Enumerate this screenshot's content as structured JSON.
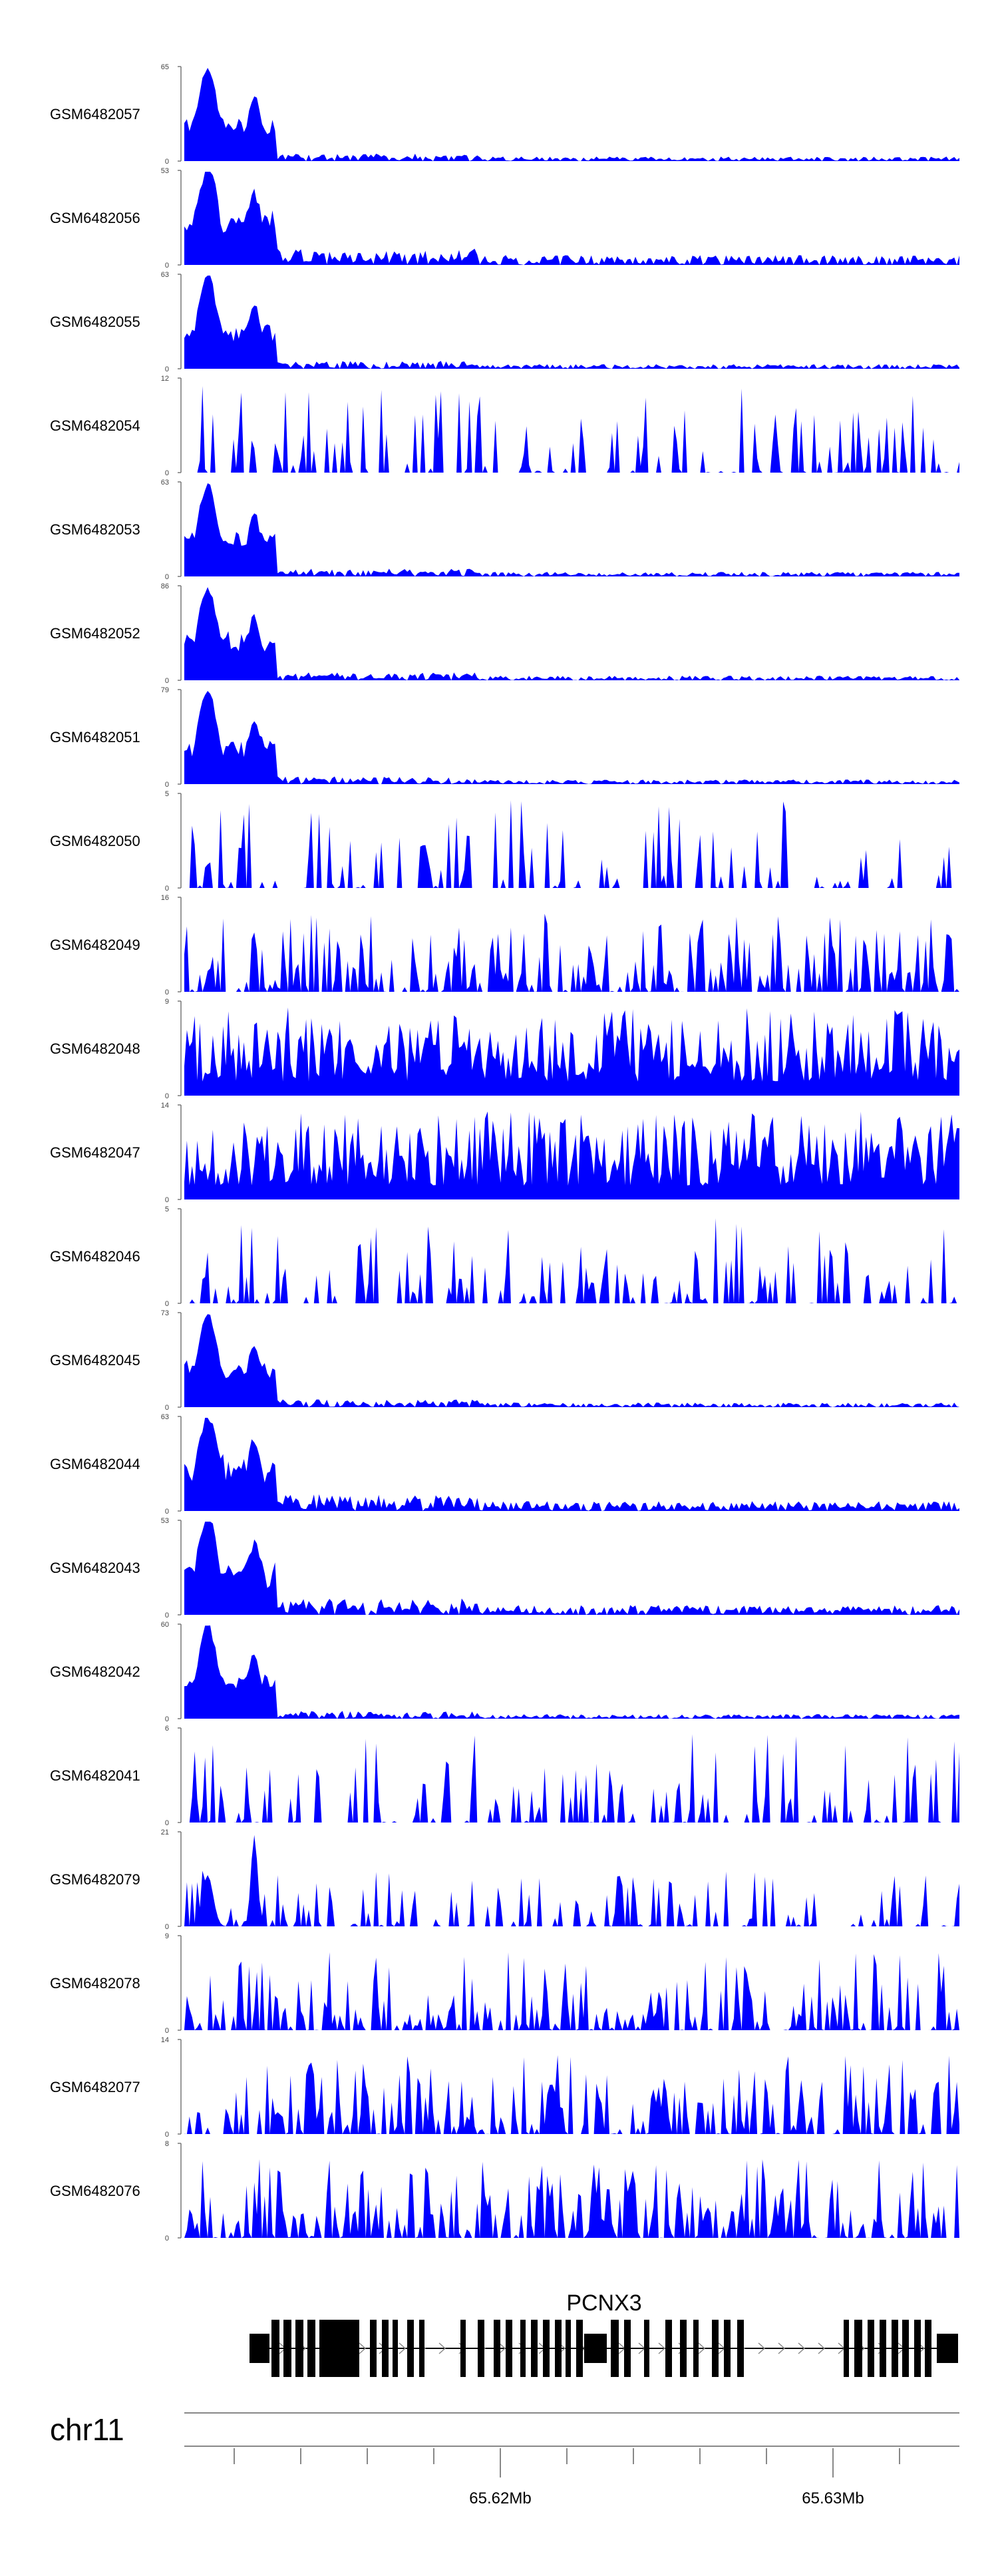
{
  "chart_data": {
    "type": "area",
    "fill_color": "#0000ff",
    "tracks": [
      {
        "sample": "GSM6482057",
        "ymax": "65",
        "ymin": "0",
        "profile": "peaky_low",
        "seed": 57
      },
      {
        "sample": "GSM6482056",
        "ymax": "53",
        "ymin": "0",
        "profile": "peaky_mid",
        "seed": 56
      },
      {
        "sample": "GSM6482055",
        "ymax": "63",
        "ymin": "0",
        "profile": "peaky_low",
        "seed": 55
      },
      {
        "sample": "GSM6482054",
        "ymax": "12",
        "ymin": "0",
        "profile": "sparse",
        "seed": 54
      },
      {
        "sample": "GSM6482053",
        "ymax": "63",
        "ymin": "0",
        "profile": "peaky_low",
        "seed": 53
      },
      {
        "sample": "GSM6482052",
        "ymax": "86",
        "ymin": "0",
        "profile": "peaky_low",
        "seed": 52
      },
      {
        "sample": "GSM6482051",
        "ymax": "79",
        "ymin": "0",
        "profile": "peaky_low",
        "seed": 51
      },
      {
        "sample": "GSM6482050",
        "ymax": "5",
        "ymin": "0",
        "profile": "sparse",
        "seed": 50
      },
      {
        "sample": "GSM6482049",
        "ymax": "16",
        "ymin": "0",
        "profile": "noisy",
        "seed": 49
      },
      {
        "sample": "GSM6482048",
        "ymax": "9",
        "ymin": "0",
        "profile": "dense",
        "seed": 48
      },
      {
        "sample": "GSM6482047",
        "ymax": "14",
        "ymin": "0",
        "profile": "dense",
        "seed": 47
      },
      {
        "sample": "GSM6482046",
        "ymax": "5",
        "ymin": "0",
        "profile": "sparse",
        "seed": 46
      },
      {
        "sample": "GSM6482045",
        "ymax": "73",
        "ymin": "0",
        "profile": "peaky_low",
        "seed": 45
      },
      {
        "sample": "GSM6482044",
        "ymax": "63",
        "ymin": "0",
        "profile": "peaky_mid",
        "seed": 44
      },
      {
        "sample": "GSM6482043",
        "ymax": "53",
        "ymin": "0",
        "profile": "peaky_mid",
        "seed": 43
      },
      {
        "sample": "GSM6482042",
        "ymax": "60",
        "ymin": "0",
        "profile": "peaky_low",
        "seed": 42
      },
      {
        "sample": "GSM6482041",
        "ymax": "6",
        "ymin": "0",
        "profile": "sparse",
        "seed": 41
      },
      {
        "sample": "GSM6482079",
        "ymax": "21",
        "ymin": "0",
        "profile": "sparse_peak",
        "seed": 79
      },
      {
        "sample": "GSM6482078",
        "ymax": "9",
        "ymin": "0",
        "profile": "noisy",
        "seed": 78
      },
      {
        "sample": "GSM6482077",
        "ymax": "14",
        "ymin": "0",
        "profile": "noisy",
        "seed": 77
      },
      {
        "sample": "GSM6482076",
        "ymax": "8",
        "ymin": "0",
        "profile": "noisy",
        "seed": 76
      }
    ],
    "gene": {
      "name": "PCNX3",
      "strand": "+"
    },
    "chromosome": "chr11",
    "x_range": [
      65.6105,
      65.6338
    ],
    "x_ticks": [
      {
        "value": 65.62,
        "label": "65.62Mb"
      },
      {
        "value": 65.63,
        "label": "65.63Mb"
      }
    ],
    "minor_tick_step": 0.002
  }
}
